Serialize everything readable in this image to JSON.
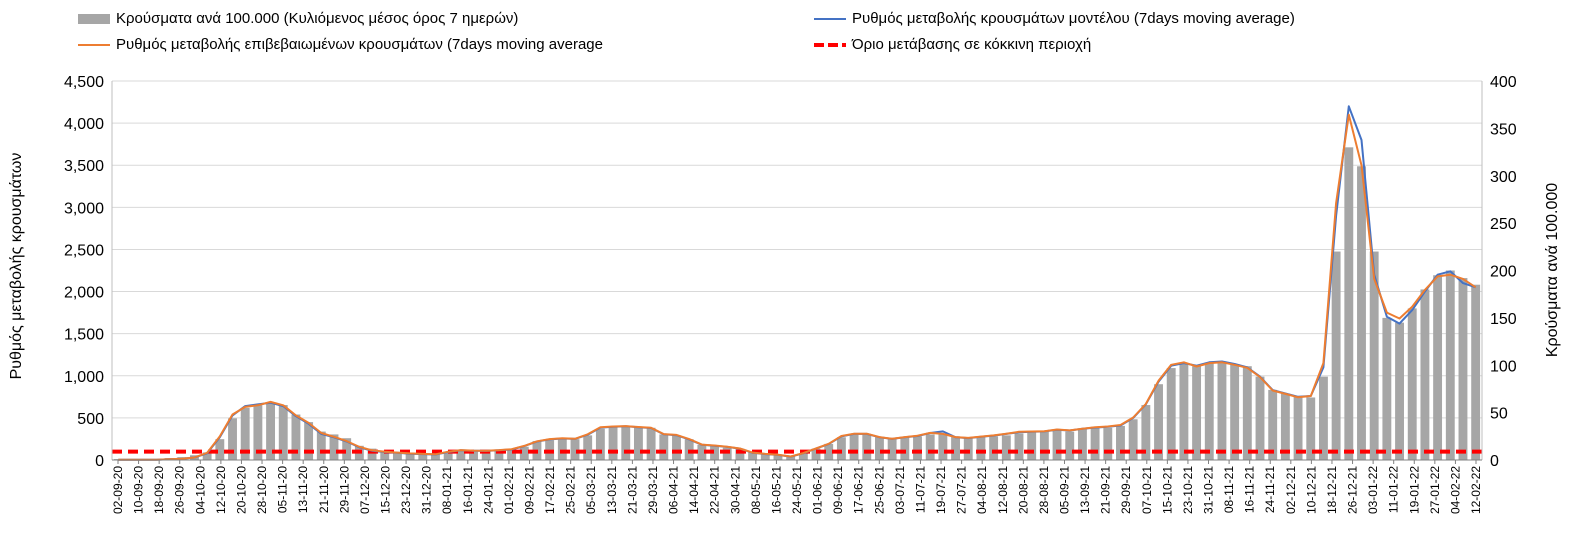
{
  "colors": {
    "bars": "#a6a6a6",
    "model": "#4472c4",
    "confirmed": "#ed7d31",
    "threshold": "#ff0000",
    "grid": "#d9d9d9"
  },
  "legend": {
    "bars": "Κρούσματα ανά 100.000 (Κυλιόμενος μέσος όρος 7 ημερών)",
    "model": "Ρυθμός μεταβολής κρουσμάτων μοντέλου (7days moving average)",
    "confirmed": "Ρυθμός μεταβολής επιβεβαιωμένων κρουσμάτων (7days moving average",
    "threshold": "Όριο μετάβασης σε κόκκινη περιοχή"
  },
  "chart_data": {
    "type": "bar",
    "ylabel_left": "Ρυθμός μεταβολής κρουσμάτων",
    "ylabel_right": "Κρούσματα ανά 100.000",
    "yleft_ticks": [
      "0",
      "500",
      "1,000",
      "1,500",
      "2,000",
      "2,500",
      "3,000",
      "3,500",
      "4,000",
      "4,500"
    ],
    "yright_ticks": [
      "0",
      "50",
      "100",
      "150",
      "200",
      "250",
      "300",
      "350",
      "400"
    ],
    "yleft_lim": [
      0,
      4500
    ],
    "yright_lim": [
      0,
      400
    ],
    "x_tick_labels": [
      "02-09-20",
      "10-09-20",
      "18-09-20",
      "26-09-20",
      "04-10-20",
      "12-10-20",
      "20-10-20",
      "28-10-20",
      "05-11-20",
      "13-11-20",
      "21-11-20",
      "29-11-20",
      "07-12-20",
      "15-12-20",
      "23-12-20",
      "31-12-20",
      "08-01-21",
      "16-01-21",
      "24-01-21",
      "01-02-21",
      "09-02-21",
      "17-02-21",
      "25-02-21",
      "05-03-21",
      "13-03-21",
      "21-03-21",
      "29-03-21",
      "06-04-21",
      "14-04-21",
      "22-04-21",
      "30-04-21",
      "08-05-21",
      "16-05-21",
      "24-05-21",
      "01-06-21",
      "09-06-21",
      "17-06-21",
      "25-06-21",
      "03-07-21",
      "11-07-21",
      "19-07-21",
      "27-07-21",
      "04-08-21",
      "12-08-21",
      "20-08-21",
      "28-08-21",
      "05-09-21",
      "13-09-21",
      "21-09-21",
      "29-09-21",
      "07-10-21",
      "15-10-21",
      "23-10-21",
      "31-10-21",
      "08-11-21",
      "16-11-21",
      "24-11-21",
      "02-12-21",
      "10-12-21",
      "18-12-21",
      "26-12-21",
      "03-01-22",
      "11-01-22",
      "19-01-22",
      "27-01-22",
      "04-02-22",
      "12-02-22"
    ],
    "threshold_left": 100,
    "series": [
      {
        "name": "Κρούσματα ανά 100.000 (Κυλιόμενος μέσος όρος 7 ημερών)",
        "axis": "right",
        "kind": "bar",
        "values": [
          1,
          1,
          1,
          1,
          2,
          3,
          5,
          8,
          22,
          44,
          55,
          58,
          60,
          58,
          48,
          40,
          30,
          27,
          23,
          15,
          12,
          10,
          8,
          7,
          6,
          6,
          8,
          10,
          9,
          9,
          10,
          11,
          14,
          20,
          21,
          22,
          22,
          26,
          33,
          35,
          36,
          35,
          34,
          27,
          26,
          22,
          16,
          15,
          13,
          12,
          8,
          6,
          5,
          4,
          7,
          12,
          17,
          24,
          27,
          27,
          24,
          22,
          24,
          25,
          27,
          28,
          25,
          23,
          24,
          25,
          26,
          28,
          29,
          30,
          32,
          30,
          33,
          35,
          34,
          36,
          43,
          58,
          80,
          97,
          102,
          99,
          102,
          104,
          101,
          99,
          88,
          74,
          70,
          67,
          66,
          88,
          220,
          330,
          310,
          220,
          150,
          145,
          160,
          180,
          195,
          200,
          192,
          185
        ]
      },
      {
        "name": "Ρυθμός μεταβολής κρουσμάτων μοντέλου (7days moving average)",
        "axis": "left",
        "kind": "line",
        "values": [
          3,
          3,
          3,
          3,
          8,
          14,
          30,
          80,
          270,
          530,
          640,
          660,
          680,
          640,
          520,
          430,
          310,
          270,
          220,
          150,
          110,
          95,
          85,
          75,
          70,
          65,
          95,
          115,
          110,
          108,
          115,
          125,
          165,
          220,
          245,
          255,
          250,
          300,
          385,
          395,
          400,
          390,
          380,
          305,
          295,
          245,
          180,
          170,
          155,
          135,
          85,
          70,
          60,
          40,
          80,
          135,
          190,
          280,
          310,
          310,
          270,
          250,
          270,
          285,
          320,
          340,
          270,
          260,
          275,
          290,
          310,
          330,
          335,
          340,
          360,
          350,
          370,
          385,
          395,
          410,
          500,
          660,
          930,
          1120,
          1150,
          1120,
          1160,
          1170,
          1140,
          1100,
          990,
          830,
          790,
          750,
          760,
          1100,
          2900,
          4200,
          3800,
          2200,
          1700,
          1620,
          1780,
          2000,
          2200,
          2240,
          2100,
          2050
        ]
      },
      {
        "name": "Ρυθμός μεταβολής επιβεβαιωμένων κρουσμάτων (7days moving average",
        "axis": "left",
        "kind": "line",
        "values": [
          3,
          3,
          3,
          3,
          8,
          14,
          30,
          85,
          280,
          540,
          630,
          650,
          690,
          650,
          530,
          440,
          320,
          275,
          225,
          155,
          115,
          98,
          88,
          78,
          72,
          68,
          98,
          118,
          112,
          110,
          118,
          128,
          168,
          222,
          248,
          258,
          252,
          305,
          390,
          398,
          402,
          392,
          382,
          308,
          298,
          248,
          183,
          172,
          158,
          137,
          88,
          72,
          62,
          42,
          82,
          137,
          192,
          285,
          312,
          312,
          272,
          252,
          272,
          288,
          322,
          310,
          272,
          262,
          278,
          292,
          312,
          335,
          338,
          342,
          362,
          352,
          372,
          388,
          398,
          415,
          505,
          665,
          940,
          1130,
          1160,
          1110,
          1150,
          1160,
          1130,
          1095,
          985,
          825,
          785,
          745,
          760,
          1150,
          3050,
          4100,
          3500,
          2150,
          1750,
          1680,
          1820,
          2020,
          2180,
          2200,
          2150,
          2050
        ]
      },
      {
        "name": "Όριο μετάβασης σε κόκκινη περιοχή",
        "axis": "left",
        "kind": "dashed",
        "values": [
          100,
          100
        ]
      }
    ]
  }
}
